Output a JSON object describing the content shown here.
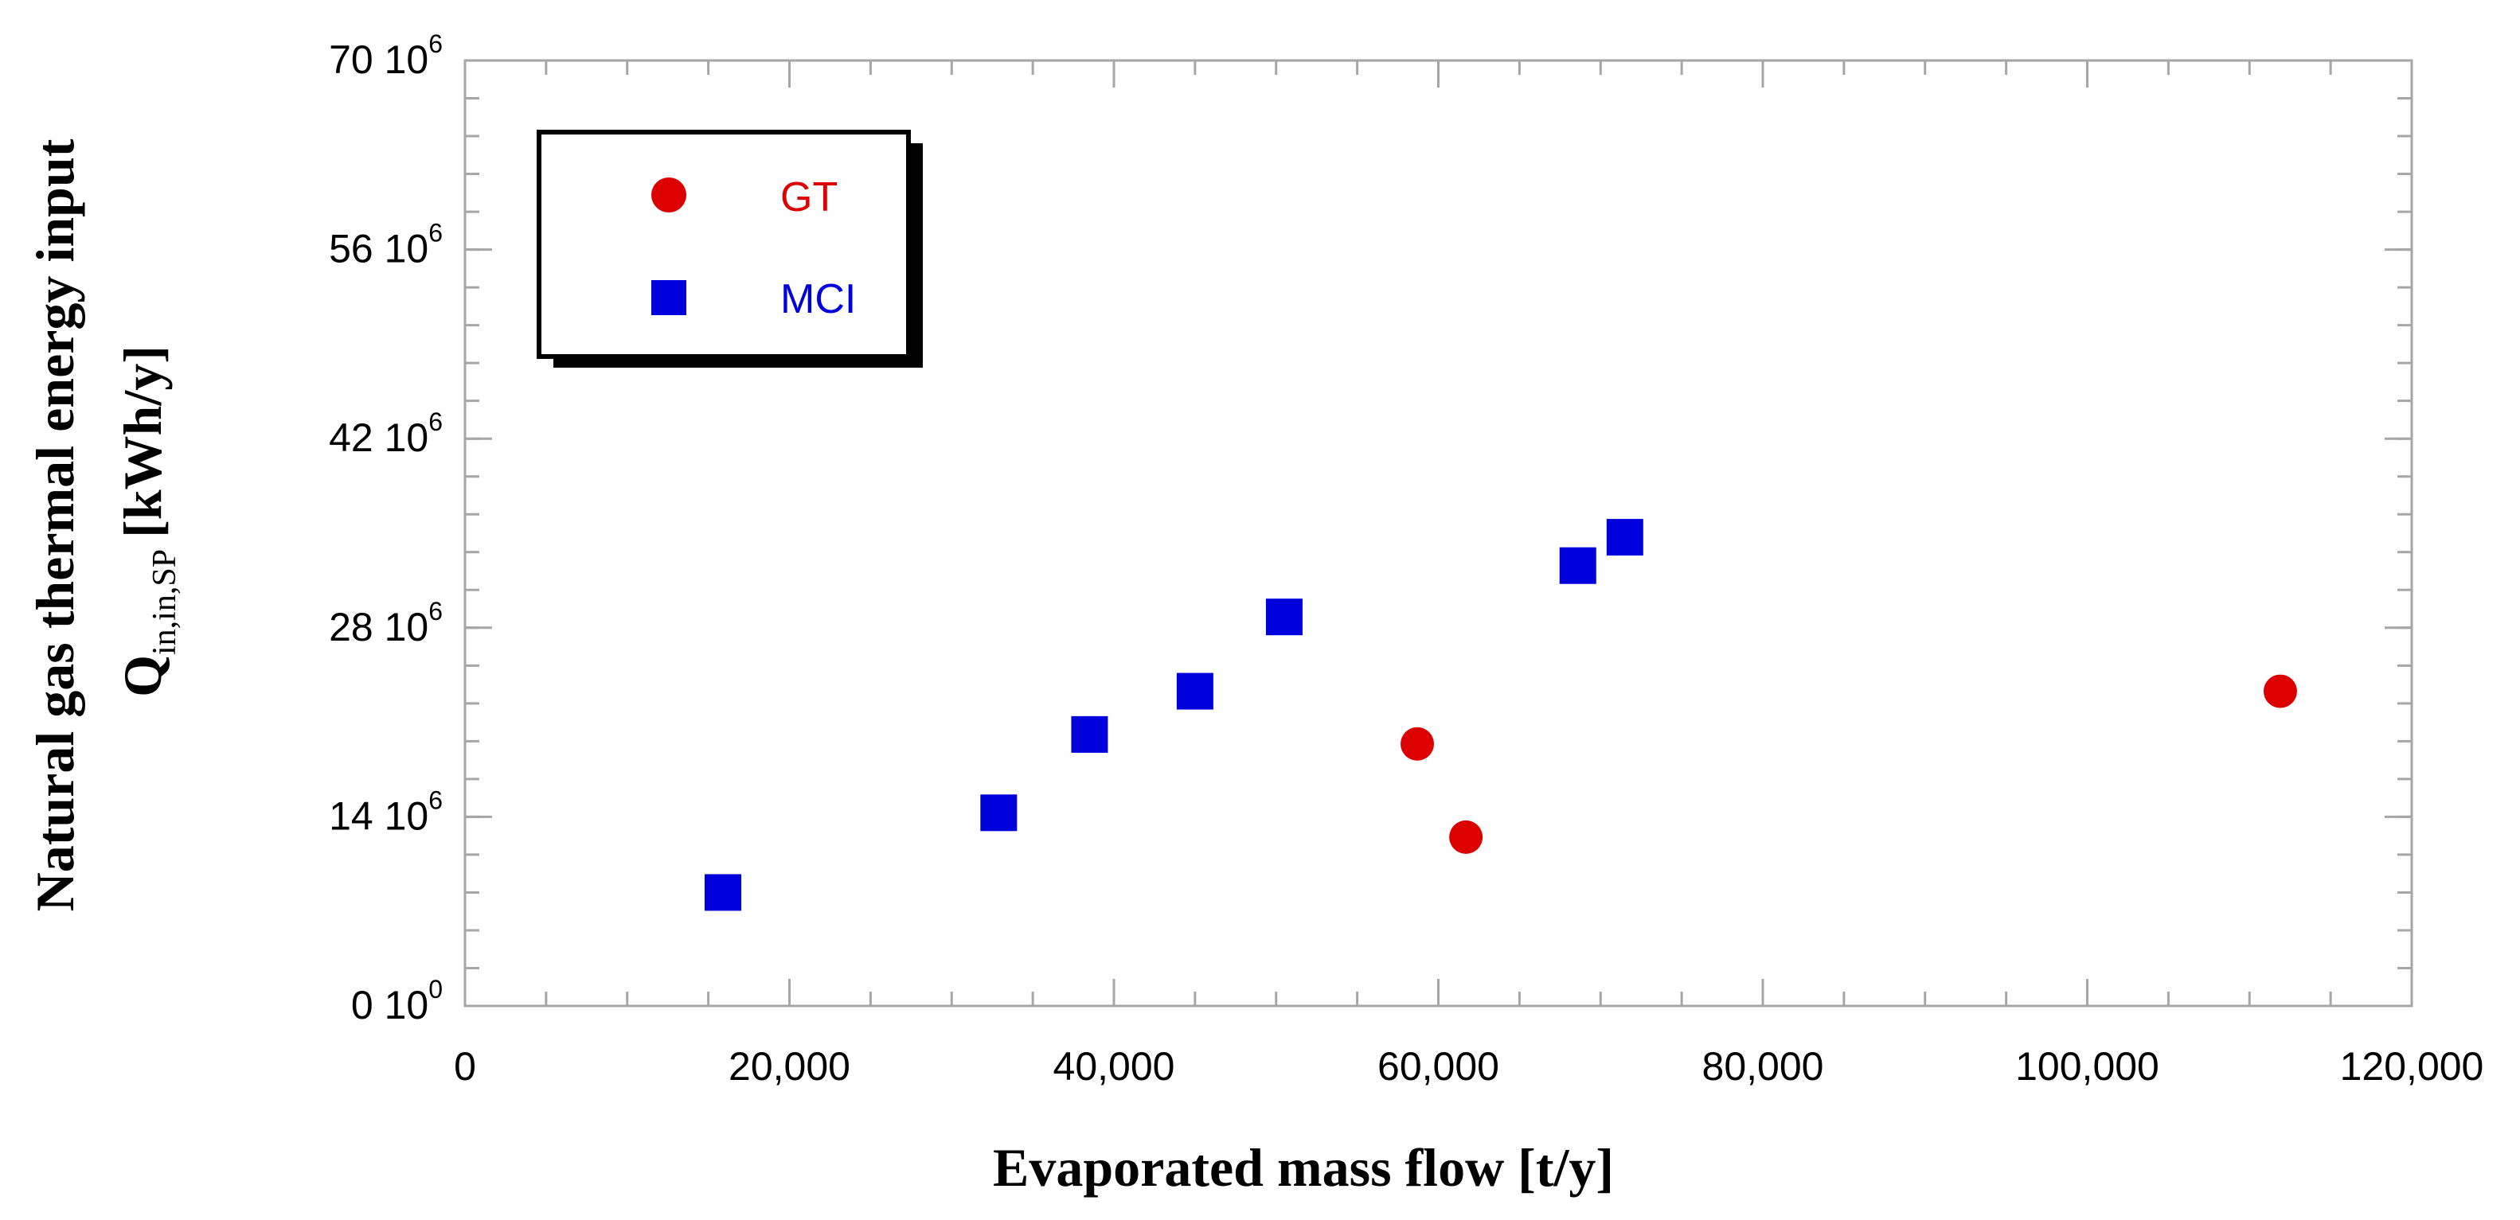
{
  "chart_data": {
    "type": "scatter",
    "title": "",
    "xlabel": "Evaporated mass flow [t/y]",
    "ylabel": {
      "line1": "Natural gas thermal energy input",
      "line2_symbol": "Q",
      "line2_subscript": "in,in,SP",
      "line2_unit": "[kWh/y]"
    },
    "xlim": [
      0,
      120000
    ],
    "ylim": [
      0,
      70000000
    ],
    "x_ticks": [
      0,
      20000,
      40000,
      60000,
      80000,
      100000,
      120000
    ],
    "x_tick_labels": [
      "0",
      "20,000",
      "40,000",
      "60,000",
      "80,000",
      "100,000",
      "120,000"
    ],
    "y_ticks": [
      0,
      14000000,
      28000000,
      42000000,
      56000000,
      70000000
    ],
    "y_tick_labels": [
      {
        "base": "0 10",
        "exp": "0"
      },
      {
        "base": "14 10",
        "exp": "6"
      },
      {
        "base": "28 10",
        "exp": "6"
      },
      {
        "base": "42 10",
        "exp": "6"
      },
      {
        "base": "56 10",
        "exp": "6"
      },
      {
        "base": "70 10",
        "exp": "6"
      }
    ],
    "grid": false,
    "legend_position": "top-left",
    "series": [
      {
        "name": "GT",
        "marker": "circle",
        "color": "#dd0000",
        "points": [
          {
            "x": 58700,
            "y": 19400000
          },
          {
            "x": 61700,
            "y": 12500000
          },
          {
            "x": 111900,
            "y": 23300000
          }
        ]
      },
      {
        "name": "MCI",
        "marker": "square",
        "color": "#0000dd",
        "points": [
          {
            "x": 15900,
            "y": 8400000
          },
          {
            "x": 32900,
            "y": 14300000
          },
          {
            "x": 38500,
            "y": 20100000
          },
          {
            "x": 45000,
            "y": 23300000
          },
          {
            "x": 50500,
            "y": 28800000
          },
          {
            "x": 68600,
            "y": 32600000
          },
          {
            "x": 71500,
            "y": 34700000
          }
        ]
      }
    ]
  }
}
